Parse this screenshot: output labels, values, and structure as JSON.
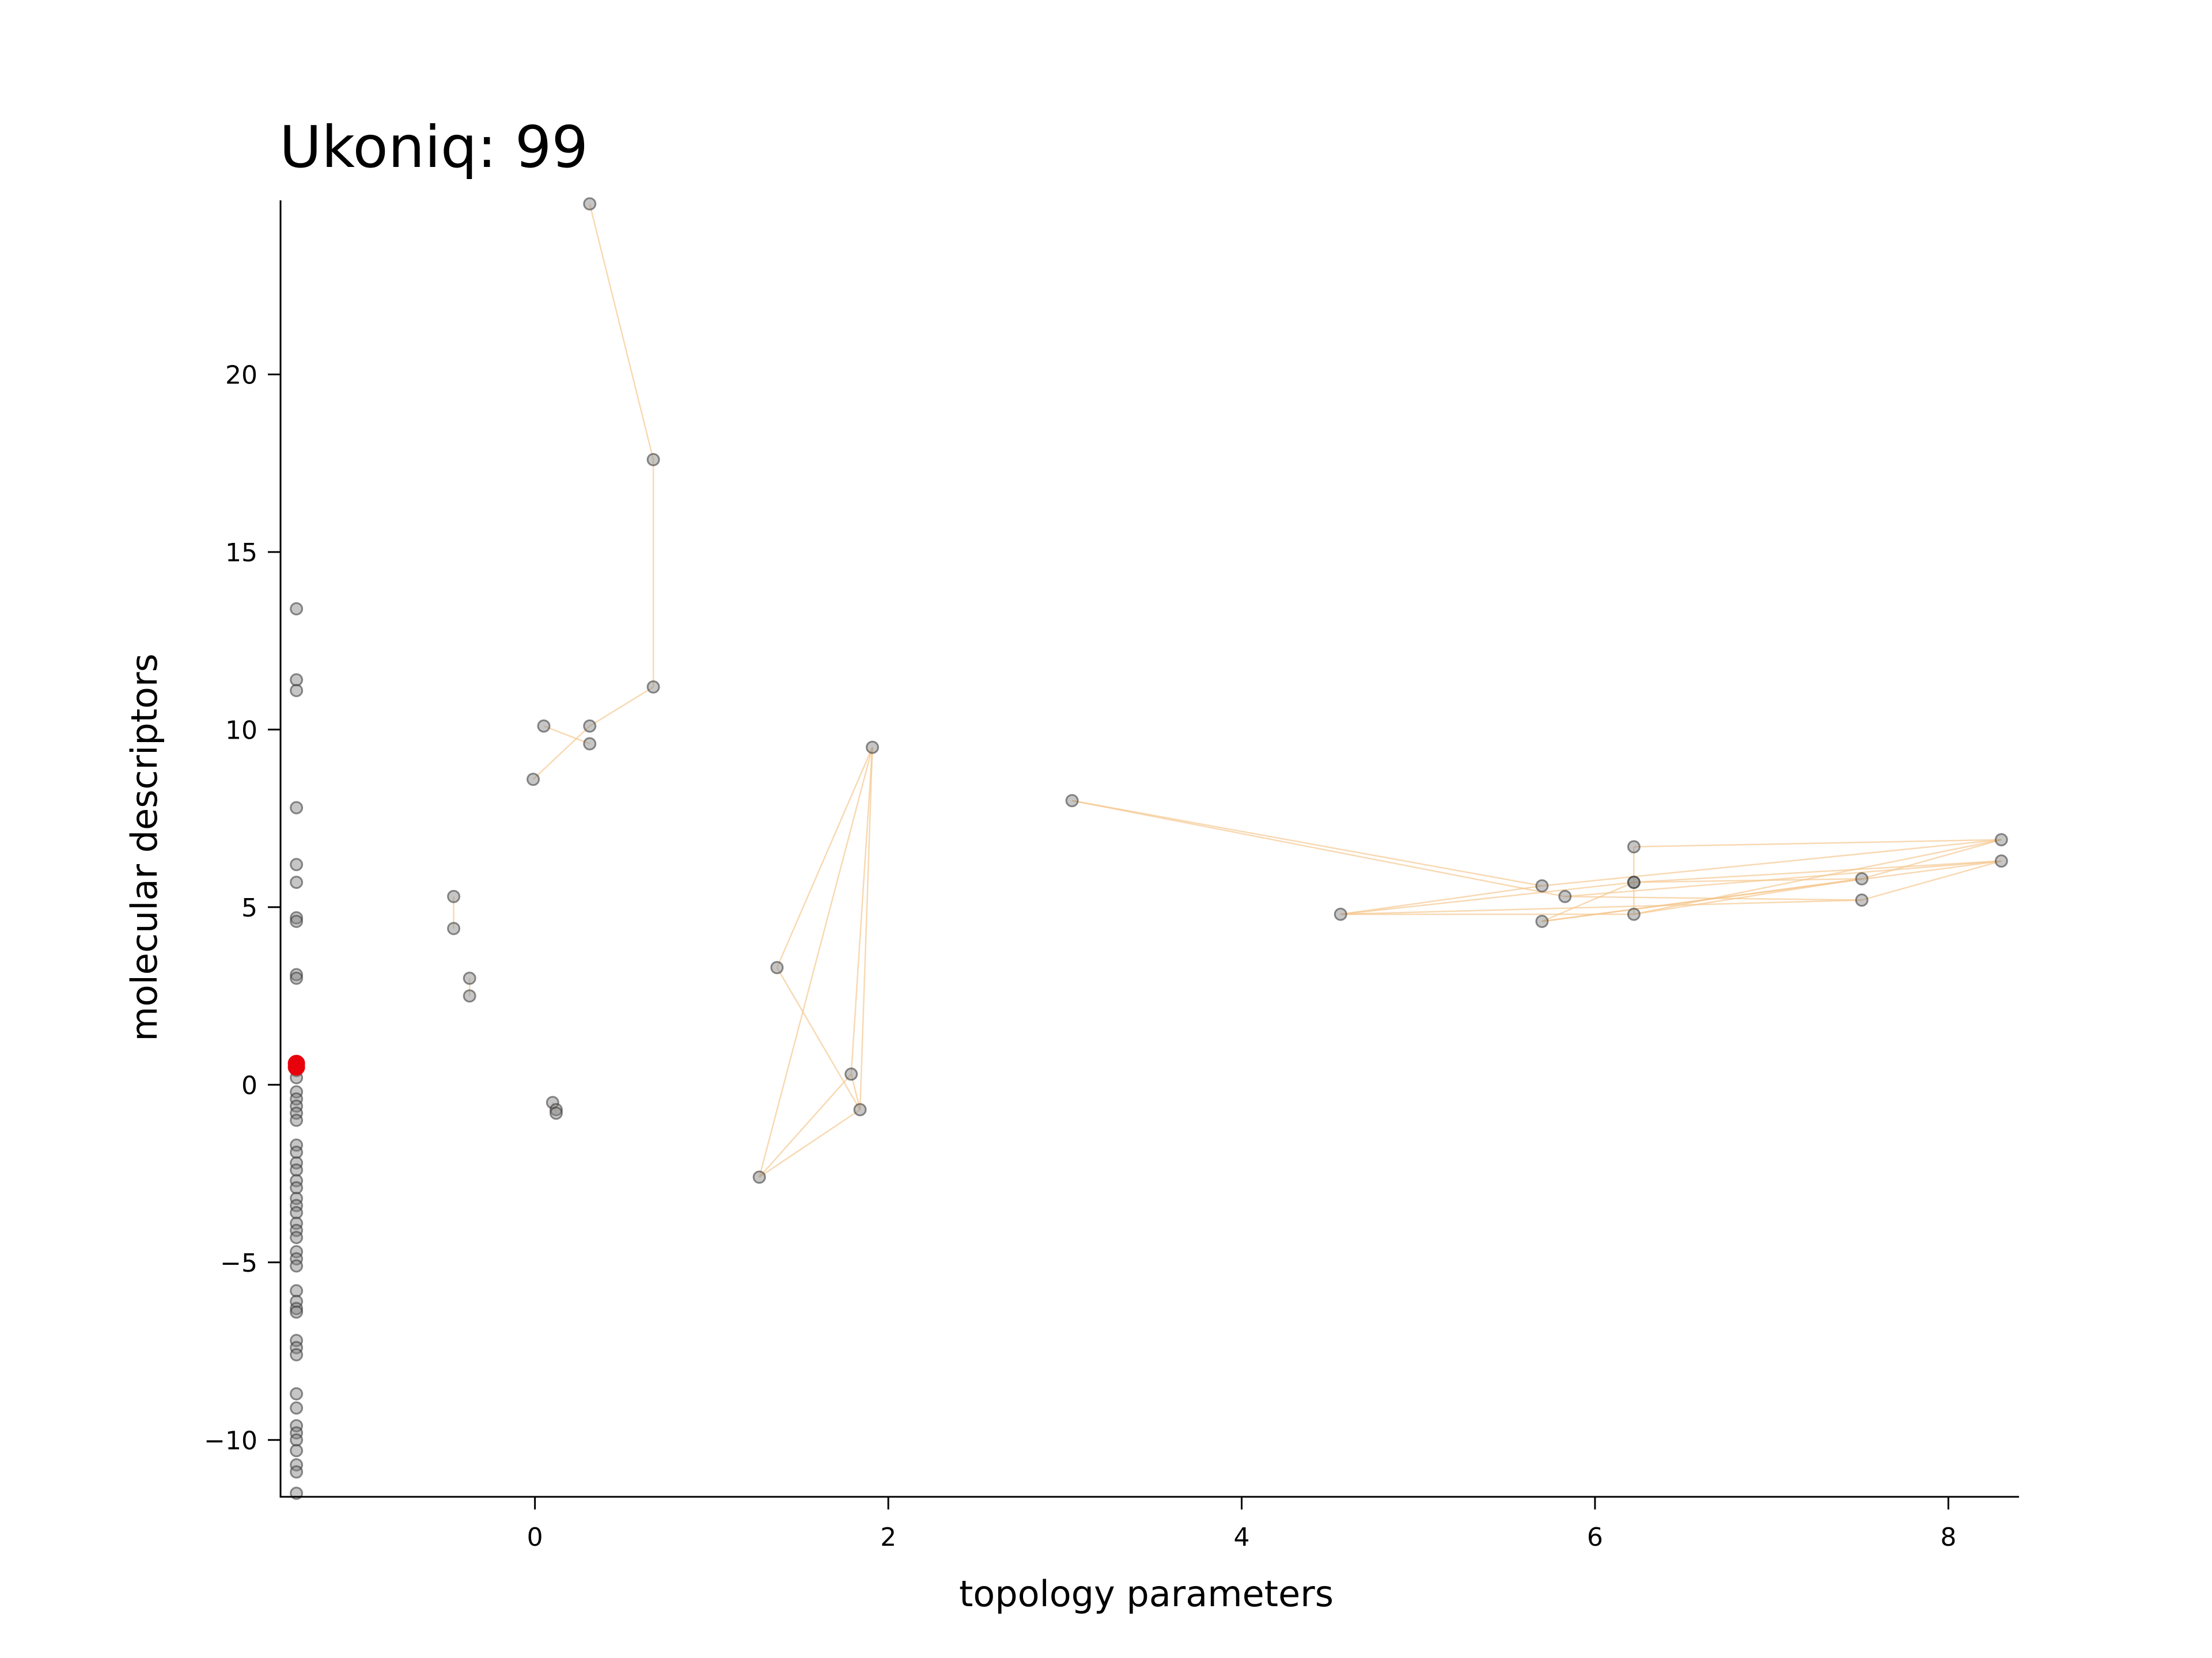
{
  "chart_data": {
    "type": "scatter",
    "title": "Ukoniq: 99",
    "xlabel": "topology parameters",
    "ylabel": "molecular descriptors",
    "xlim": [
      -1.44,
      8.4
    ],
    "ylim": [
      -11.6,
      24.9
    ],
    "xticks": [
      0,
      2,
      4,
      6,
      8
    ],
    "yticks": [
      -10,
      -5,
      0,
      5,
      10,
      15,
      20
    ],
    "xtick_labels": [
      "0",
      "2",
      "4",
      "6",
      "8"
    ],
    "ytick_labels": [
      "−10",
      "−5",
      "0",
      "5",
      "10",
      "15",
      "20"
    ],
    "grid": false,
    "legend": "none",
    "point_color": "#808080",
    "highlight_color": "#e8000b",
    "edge_color": "#f5c58a",
    "points": [
      [
        -1.35,
        13.4
      ],
      [
        -1.35,
        11.4
      ],
      [
        -1.35,
        11.1
      ],
      [
        -1.35,
        7.8
      ],
      [
        -1.35,
        6.2
      ],
      [
        -1.35,
        5.7
      ],
      [
        -1.35,
        4.7
      ],
      [
        -1.35,
        4.6
      ],
      [
        -1.35,
        3.1
      ],
      [
        -1.35,
        3.0
      ],
      [
        -1.35,
        0.4
      ],
      [
        -1.35,
        0.2
      ],
      [
        -1.35,
        -0.2
      ],
      [
        -1.35,
        -0.4
      ],
      [
        -1.35,
        -0.6
      ],
      [
        -1.35,
        -0.8
      ],
      [
        -1.35,
        -1.0
      ],
      [
        -1.35,
        -1.7
      ],
      [
        -1.35,
        -1.9
      ],
      [
        -1.35,
        -2.2
      ],
      [
        -1.35,
        -2.4
      ],
      [
        -1.35,
        -2.7
      ],
      [
        -1.35,
        -2.9
      ],
      [
        -1.35,
        -3.2
      ],
      [
        -1.35,
        -3.4
      ],
      [
        -1.35,
        -3.6
      ],
      [
        -1.35,
        -3.9
      ],
      [
        -1.35,
        -4.1
      ],
      [
        -1.35,
        -4.3
      ],
      [
        -1.35,
        -4.7
      ],
      [
        -1.35,
        -4.9
      ],
      [
        -1.35,
        -5.1
      ],
      [
        -1.35,
        -5.8
      ],
      [
        -1.35,
        -6.1
      ],
      [
        -1.35,
        -6.3
      ],
      [
        -1.35,
        -6.4
      ],
      [
        -1.35,
        -7.2
      ],
      [
        -1.35,
        -7.4
      ],
      [
        -1.35,
        -7.6
      ],
      [
        -1.35,
        -8.7
      ],
      [
        -1.35,
        -9.1
      ],
      [
        -1.35,
        -9.6
      ],
      [
        -1.35,
        -9.8
      ],
      [
        -1.35,
        -10.0
      ],
      [
        -1.35,
        -10.3
      ],
      [
        -1.35,
        -10.7
      ],
      [
        -1.35,
        -10.9
      ],
      [
        -1.35,
        -11.5
      ],
      [
        -0.46,
        5.3
      ],
      [
        -0.46,
        4.4
      ],
      [
        -0.37,
        3.0
      ],
      [
        -0.37,
        2.5
      ],
      [
        0.1,
        -0.5
      ],
      [
        0.12,
        -0.7
      ],
      [
        0.12,
        -0.8
      ],
      [
        -0.01,
        8.6
      ],
      [
        0.05,
        10.1
      ],
      [
        0.31,
        10.1
      ],
      [
        0.31,
        9.6
      ],
      [
        0.31,
        24.8
      ],
      [
        0.67,
        17.6
      ],
      [
        0.67,
        11.2
      ],
      [
        1.37,
        3.3
      ],
      [
        1.27,
        -2.6
      ],
      [
        1.79,
        0.3
      ],
      [
        1.84,
        -0.7
      ],
      [
        1.91,
        9.5
      ],
      [
        3.04,
        8.0
      ],
      [
        4.56,
        4.8
      ],
      [
        5.7,
        5.6
      ],
      [
        5.7,
        4.6
      ],
      [
        5.83,
        5.3
      ],
      [
        6.22,
        6.7
      ],
      [
        6.22,
        5.7
      ],
      [
        6.22,
        5.7
      ],
      [
        6.22,
        4.8
      ],
      [
        7.51,
        5.8
      ],
      [
        7.51,
        5.2
      ],
      [
        8.3,
        6.9
      ],
      [
        8.3,
        6.3
      ]
    ],
    "edges": [
      [
        [
          0.31,
          24.8
        ],
        [
          0.67,
          17.6
        ]
      ],
      [
        [
          0.67,
          17.6
        ],
        [
          0.67,
          11.2
        ]
      ],
      [
        [
          0.67,
          11.2
        ],
        [
          0.31,
          10.1
        ]
      ],
      [
        [
          0.31,
          10.1
        ],
        [
          -0.01,
          8.6
        ]
      ],
      [
        [
          0.05,
          10.1
        ],
        [
          0.31,
          9.6
        ]
      ],
      [
        [
          -0.46,
          5.3
        ],
        [
          -0.46,
          4.4
        ]
      ],
      [
        [
          -0.37,
          3.0
        ],
        [
          -0.37,
          2.5
        ]
      ],
      [
        [
          0.1,
          -0.5
        ],
        [
          0.12,
          -0.8
        ]
      ],
      [
        [
          1.91,
          9.5
        ],
        [
          1.37,
          3.3
        ]
      ],
      [
        [
          1.91,
          9.5
        ],
        [
          1.27,
          -2.6
        ]
      ],
      [
        [
          1.91,
          9.5
        ],
        [
          1.79,
          0.3
        ]
      ],
      [
        [
          1.91,
          9.5
        ],
        [
          1.84,
          -0.7
        ]
      ],
      [
        [
          1.37,
          3.3
        ],
        [
          1.84,
          -0.7
        ]
      ],
      [
        [
          1.27,
          -2.6
        ],
        [
          1.79,
          0.3
        ]
      ],
      [
        [
          1.27,
          -2.6
        ],
        [
          1.84,
          -0.7
        ]
      ],
      [
        [
          1.79,
          0.3
        ],
        [
          1.84,
          -0.7
        ]
      ],
      [
        [
          3.04,
          8.0
        ],
        [
          5.7,
          5.6
        ]
      ],
      [
        [
          3.04,
          8.0
        ],
        [
          5.83,
          5.3
        ]
      ],
      [
        [
          4.56,
          4.8
        ],
        [
          6.22,
          5.7
        ]
      ],
      [
        [
          4.56,
          4.8
        ],
        [
          5.7,
          5.6
        ]
      ],
      [
        [
          4.56,
          4.8
        ],
        [
          7.51,
          5.2
        ]
      ],
      [
        [
          4.56,
          4.8
        ],
        [
          6.22,
          4.8
        ]
      ],
      [
        [
          5.7,
          4.6
        ],
        [
          6.22,
          5.7
        ]
      ],
      [
        [
          5.7,
          4.6
        ],
        [
          7.51,
          5.8
        ]
      ],
      [
        [
          5.7,
          4.6
        ],
        [
          8.3,
          6.3
        ]
      ],
      [
        [
          5.7,
          5.6
        ],
        [
          8.3,
          6.9
        ]
      ],
      [
        [
          5.83,
          5.3
        ],
        [
          7.51,
          5.2
        ]
      ],
      [
        [
          6.22,
          6.7
        ],
        [
          8.3,
          6.9
        ]
      ],
      [
        [
          6.22,
          6.7
        ],
        [
          6.22,
          4.8
        ]
      ],
      [
        [
          6.22,
          5.7
        ],
        [
          8.3,
          6.3
        ]
      ],
      [
        [
          6.22,
          5.7
        ],
        [
          7.51,
          5.8
        ]
      ],
      [
        [
          6.22,
          4.8
        ],
        [
          8.3,
          6.9
        ]
      ],
      [
        [
          6.22,
          4.8
        ],
        [
          7.51,
          5.8
        ]
      ],
      [
        [
          7.51,
          5.2
        ],
        [
          8.3,
          6.3
        ]
      ],
      [
        [
          7.51,
          5.8
        ],
        [
          8.3,
          6.9
        ]
      ],
      [
        [
          5.83,
          5.3
        ],
        [
          8.3,
          6.3
        ]
      ]
    ],
    "highlight": [
      [
        -1.35,
        0.6
      ],
      [
        -1.35,
        0.5
      ]
    ]
  }
}
